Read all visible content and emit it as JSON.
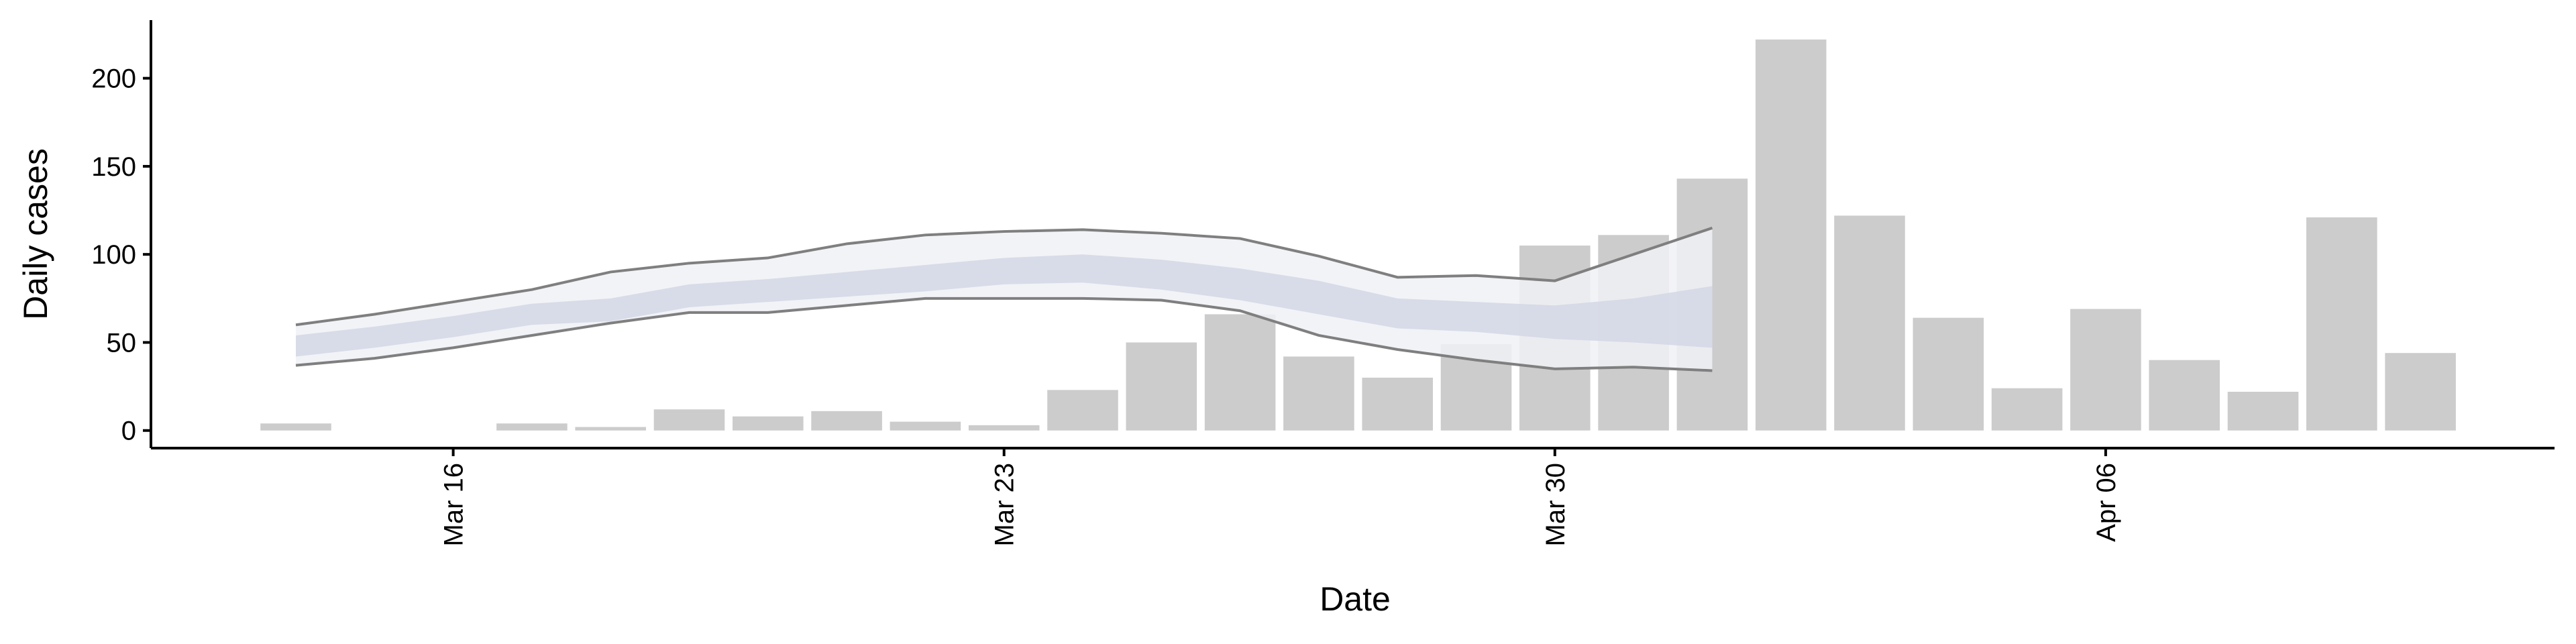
{
  "chart_data": {
    "type": "bar",
    "xlabel": "Date",
    "ylabel": "Daily cases",
    "categories": [
      null,
      null,
      "Mar 16",
      null,
      null,
      null,
      null,
      null,
      null,
      "Mar 23",
      null,
      null,
      null,
      null,
      null,
      null,
      "Mar 30",
      null,
      null,
      null,
      null,
      null,
      null,
      "Apr 06",
      null,
      null,
      null,
      null
    ],
    "values": [
      4,
      0,
      0,
      4,
      2,
      12,
      8,
      11,
      5,
      3,
      23,
      50,
      66,
      42,
      30,
      49,
      105,
      111,
      143,
      222,
      122,
      64,
      24,
      69,
      40,
      22,
      121,
      44
    ],
    "color": "#cccccc",
    "ylim": [
      -10,
      233
    ],
    "yticks": [
      0,
      50,
      100,
      150,
      200
    ],
    "ribbons": [
      {
        "color": "#f0f1f6",
        "line_color": "#7f7f7f",
        "lower": [
          37,
          41,
          47,
          54,
          61,
          67,
          67,
          71,
          75,
          75,
          75,
          74,
          68,
          54,
          46,
          40,
          35,
          36,
          34,
          null,
          null,
          null,
          null,
          null,
          null,
          null,
          null,
          null
        ],
        "upper": [
          60,
          66,
          73,
          80,
          90,
          95,
          98,
          106,
          111,
          113,
          114,
          112,
          109,
          99,
          87,
          88,
          85,
          100,
          115,
          null,
          null,
          null,
          null,
          null,
          null,
          null,
          null,
          null
        ]
      },
      {
        "color": "#d3d7e5",
        "lower": [
          42,
          47,
          53,
          60,
          62,
          70,
          73,
          76,
          79,
          83,
          84,
          80,
          74,
          66,
          58,
          56,
          52,
          50,
          47,
          null,
          null,
          null,
          null,
          null,
          null,
          null,
          null,
          null
        ],
        "upper": [
          54,
          59,
          65,
          72,
          75,
          83,
          86,
          90,
          94,
          98,
          100,
          97,
          92,
          85,
          75,
          73,
          71,
          75,
          82,
          null,
          null,
          null,
          null,
          null,
          null,
          null,
          null,
          null
        ]
      }
    ]
  }
}
